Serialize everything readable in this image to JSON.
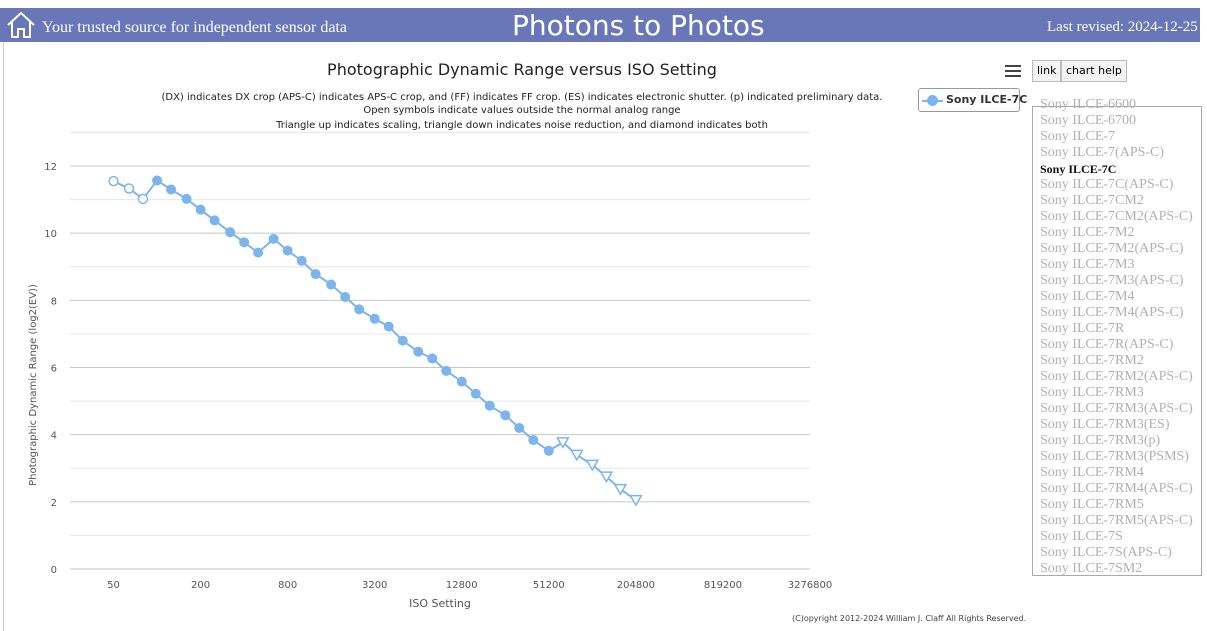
{
  "header": {
    "tagline": "Your trusted source for independent sensor data",
    "site_title": "Photons to Photos",
    "last_revised": "Last revised: 2024-12-25 ("
  },
  "colors": {
    "header_bg": "#6977b8",
    "series": "#7cb5ec"
  },
  "toolbar": {
    "link_label": "link",
    "help_label": "chart help"
  },
  "legend": {
    "label": "Sony ILCE-7C"
  },
  "chart_data": {
    "type": "line",
    "title": "Photographic Dynamic Range versus ISO Setting",
    "subtitle": [
      "(DX) indicates DX crop (APS-C) indicates APS-C crop, and (FF) indicates FF crop. (ES) indicates electronic shutter. (p) indicated preliminary data.",
      "Open symbols indicate values outside the normal analog range",
      "Triangle up indicates scaling, triangle down indicates noise reduction, and diamond indicates both"
    ],
    "xlabel": "ISO Setting",
    "ylabel": "Photographic Dynamic Range (log2(EV))",
    "x_scale": "log2",
    "xlim": [
      25,
      3276800
    ],
    "x_ticks": [
      50,
      200,
      800,
      3200,
      12800,
      51200,
      204800,
      819200,
      3276800
    ],
    "x_tick_labels": [
      "50",
      "200",
      "800",
      "3200",
      "12800",
      "51200",
      "204800",
      "819200",
      "3276800"
    ],
    "ylim": [
      0,
      12
    ],
    "y_ticks": [
      0,
      2,
      4,
      6,
      8,
      10,
      12
    ],
    "series": [
      {
        "name": "Sony ILCE-7C",
        "color": "#7cb5ec",
        "points": [
          {
            "iso": 50,
            "dr": 11.55,
            "marker": "open-circle"
          },
          {
            "iso": 64,
            "dr": 11.33,
            "marker": "open-circle"
          },
          {
            "iso": 80,
            "dr": 11.02,
            "marker": "open-circle"
          },
          {
            "iso": 100,
            "dr": 11.57,
            "marker": "circle"
          },
          {
            "iso": 125,
            "dr": 11.3,
            "marker": "circle"
          },
          {
            "iso": 160,
            "dr": 11.02,
            "marker": "circle"
          },
          {
            "iso": 200,
            "dr": 10.7,
            "marker": "circle"
          },
          {
            "iso": 250,
            "dr": 10.38,
            "marker": "circle"
          },
          {
            "iso": 320,
            "dr": 10.03,
            "marker": "circle"
          },
          {
            "iso": 400,
            "dr": 9.73,
            "marker": "circle"
          },
          {
            "iso": 500,
            "dr": 9.42,
            "marker": "circle"
          },
          {
            "iso": 640,
            "dr": 9.83,
            "marker": "circle"
          },
          {
            "iso": 800,
            "dr": 9.48,
            "marker": "circle"
          },
          {
            "iso": 1000,
            "dr": 9.18,
            "marker": "circle"
          },
          {
            "iso": 1250,
            "dr": 8.78,
            "marker": "circle"
          },
          {
            "iso": 1600,
            "dr": 8.47,
            "marker": "circle"
          },
          {
            "iso": 2000,
            "dr": 8.1,
            "marker": "circle"
          },
          {
            "iso": 2500,
            "dr": 7.73,
            "marker": "circle"
          },
          {
            "iso": 3200,
            "dr": 7.45,
            "marker": "circle"
          },
          {
            "iso": 4000,
            "dr": 7.22,
            "marker": "circle"
          },
          {
            "iso": 5000,
            "dr": 6.8,
            "marker": "circle"
          },
          {
            "iso": 6400,
            "dr": 6.47,
            "marker": "circle"
          },
          {
            "iso": 8000,
            "dr": 6.27,
            "marker": "circle"
          },
          {
            "iso": 10000,
            "dr": 5.9,
            "marker": "circle"
          },
          {
            "iso": 12800,
            "dr": 5.58,
            "marker": "circle"
          },
          {
            "iso": 16000,
            "dr": 5.22,
            "marker": "circle"
          },
          {
            "iso": 20000,
            "dr": 4.86,
            "marker": "circle"
          },
          {
            "iso": 25600,
            "dr": 4.58,
            "marker": "circle"
          },
          {
            "iso": 32000,
            "dr": 4.2,
            "marker": "circle"
          },
          {
            "iso": 40000,
            "dr": 3.84,
            "marker": "circle"
          },
          {
            "iso": 51200,
            "dr": 3.52,
            "marker": "circle"
          },
          {
            "iso": 64000,
            "dr": 3.77,
            "marker": "triangle-down"
          },
          {
            "iso": 80000,
            "dr": 3.4,
            "marker": "triangle-down"
          },
          {
            "iso": 102400,
            "dr": 3.1,
            "marker": "triangle-down"
          },
          {
            "iso": 128000,
            "dr": 2.75,
            "marker": "triangle-down"
          },
          {
            "iso": 160000,
            "dr": 2.38,
            "marker": "triangle-down"
          },
          {
            "iso": 204800,
            "dr": 2.05,
            "marker": "triangle-down"
          }
        ]
      }
    ]
  },
  "camera_list": {
    "selected": "Sony ILCE-7C",
    "items": [
      "Sony ILCE-6600",
      "Sony ILCE-6700",
      "Sony ILCE-7",
      "Sony ILCE-7(APS-C)",
      "Sony ILCE-7C",
      "Sony ILCE-7C(APS-C)",
      "Sony ILCE-7CM2",
      "Sony ILCE-7CM2(APS-C)",
      "Sony ILCE-7M2",
      "Sony ILCE-7M2(APS-C)",
      "Sony ILCE-7M3",
      "Sony ILCE-7M3(APS-C)",
      "Sony ILCE-7M4",
      "Sony ILCE-7M4(APS-C)",
      "Sony ILCE-7R",
      "Sony ILCE-7R(APS-C)",
      "Sony ILCE-7RM2",
      "Sony ILCE-7RM2(APS-C)",
      "Sony ILCE-7RM3",
      "Sony ILCE-7RM3(APS-C)",
      "Sony ILCE-7RM3(ES)",
      "Sony ILCE-7RM3(p)",
      "Sony ILCE-7RM3(PSMS)",
      "Sony ILCE-7RM4",
      "Sony ILCE-7RM4(APS-C)",
      "Sony ILCE-7RM5",
      "Sony ILCE-7RM5(APS-C)",
      "Sony ILCE-7S",
      "Sony ILCE-7S(APS-C)",
      "Sony ILCE-7SM2"
    ]
  },
  "footer": {
    "copyright": "(C)opyright 2012-2024 William J. Claff All Rights Reserved."
  }
}
